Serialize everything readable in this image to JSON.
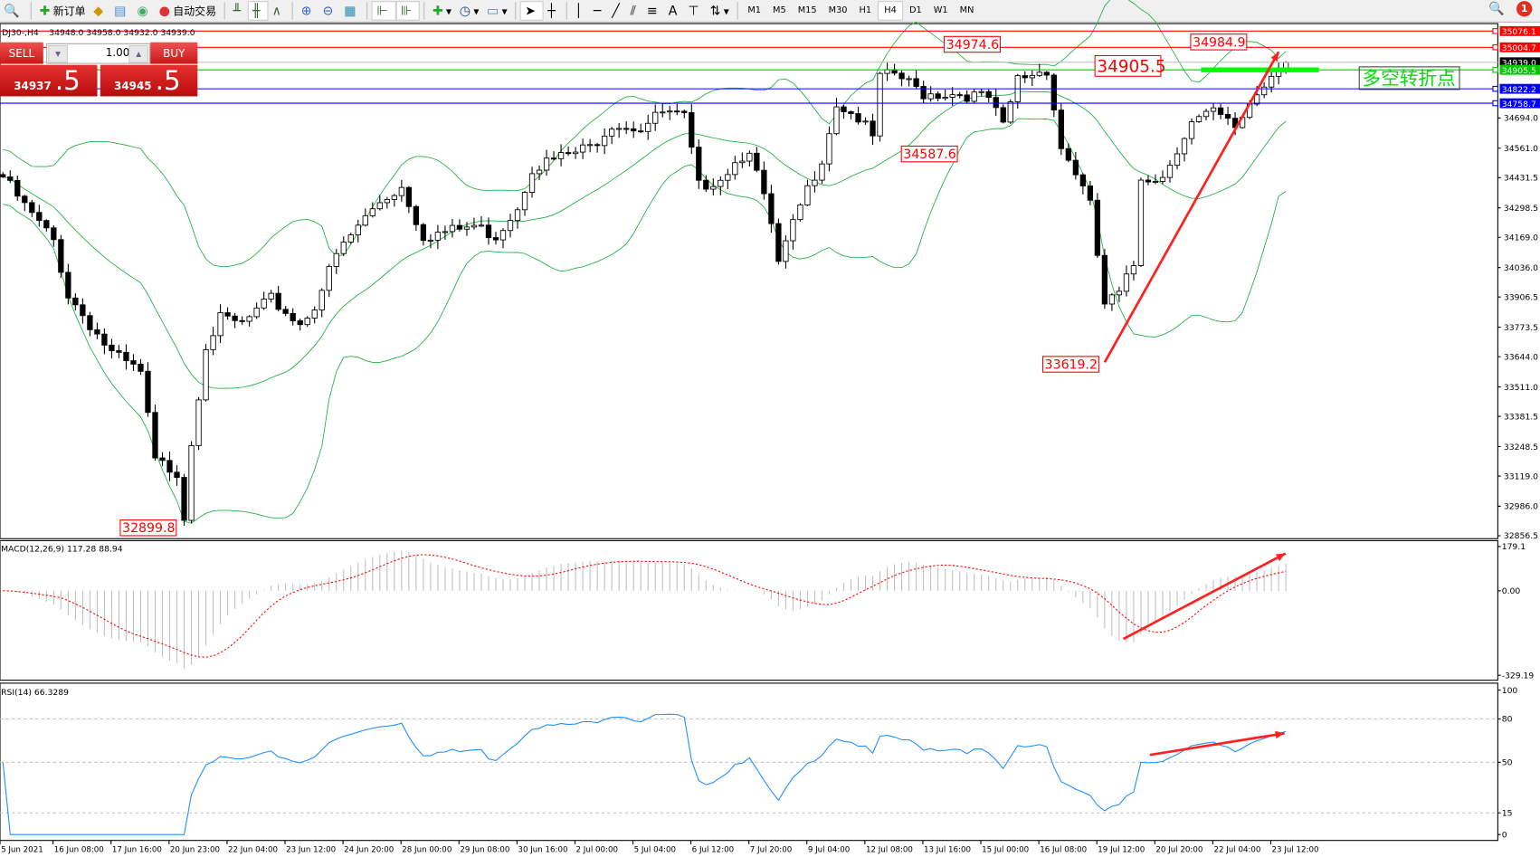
{
  "toolbar": {
    "new_order": "新订单",
    "auto_trading": "自动交易",
    "timeframes": [
      "M1",
      "M5",
      "M15",
      "M30",
      "H1",
      "H4",
      "D1",
      "W1",
      "MN"
    ],
    "active_timeframe": "H4",
    "notification_count": "1"
  },
  "chart_header": {
    "symbol": "DJ30-,H4",
    "ohlc": "34948.0 34958.0 34932.0 34939.0"
  },
  "one_click": {
    "sell_label": "SELL",
    "buy_label": "BUY",
    "lot": "1.00",
    "sell_main": "34937",
    "sell_frac": ".5",
    "buy_main": "34945",
    "buy_frac": ".5"
  },
  "annotation": {
    "text": "多空转折点",
    "color": "#00e000"
  },
  "colors": {
    "bull_line": "#ff0000",
    "bear_line": "#0000ff",
    "pivot": "#00cc00",
    "band": "#20b040",
    "rsi": "#1e90ff",
    "macd_signal": "#ff0000",
    "arrow": "#ff2020"
  },
  "chart_data": [
    {
      "type": "candlestick",
      "title": "DJ30-,H4",
      "indicator": "Bollinger Bands",
      "ylim": [
        32856.5,
        35076.1
      ],
      "y_ticks": [
        "34694.0",
        "34561.0",
        "34431.5",
        "34298.5",
        "34169.0",
        "34036.0",
        "33906.5",
        "33773.5",
        "33644.0",
        "33511.0",
        "33381.5",
        "33248.5",
        "33119.0",
        "32986.0",
        "32856.5"
      ],
      "x_ticks": [
        "5 Jun 2021",
        "16 Jun 08:00",
        "17 Jun 16:00",
        "20 Jun 23:00",
        "22 Jun 04:00",
        "23 Jun 12:00",
        "24 Jun 20:00",
        "28 Jun 00:00",
        "29 Jun 08:00",
        "30 Jun 16:00",
        "2 Jul 00:00",
        "5 Jul 04:00",
        "6 Jul 12:00",
        "7 Jul 20:00",
        "9 Jul 04:00",
        "12 Jul 08:00",
        "13 Jul 16:00",
        "15 Jul 00:00",
        "16 Jul 08:00",
        "19 Jul 12:00",
        "20 Jul 20:00",
        "22 Jul 04:00",
        "23 Jul 12:00"
      ],
      "close_keypoints": [
        [
          0,
          34435
        ],
        [
          3,
          34305
        ],
        [
          7,
          34154
        ],
        [
          9,
          33916
        ],
        [
          12,
          33787
        ],
        [
          15,
          33657
        ],
        [
          19,
          33570
        ],
        [
          21,
          33182
        ],
        [
          24,
          33139
        ],
        [
          25,
          32944
        ],
        [
          26,
          33268
        ],
        [
          28,
          33700
        ],
        [
          30,
          33808
        ],
        [
          33,
          33787
        ],
        [
          37,
          33895
        ],
        [
          41,
          33787
        ],
        [
          43,
          33873
        ],
        [
          46,
          34089
        ],
        [
          49,
          34219
        ],
        [
          52,
          34327
        ],
        [
          55,
          34392
        ],
        [
          58,
          34176
        ],
        [
          62,
          34197
        ],
        [
          65,
          34219
        ],
        [
          68,
          34176
        ],
        [
          71,
          34305
        ],
        [
          73,
          34478
        ],
        [
          77,
          34521
        ],
        [
          81,
          34564
        ],
        [
          84,
          34672
        ],
        [
          88,
          34651
        ],
        [
          91,
          34716
        ],
        [
          94,
          34694
        ],
        [
          96,
          34392
        ],
        [
          99,
          34435
        ],
        [
          103,
          34564
        ],
        [
          106,
          34219
        ],
        [
          107,
          34046
        ],
        [
          110,
          34305
        ],
        [
          113,
          34521
        ],
        [
          115,
          34759
        ],
        [
          118,
          34694
        ],
        [
          120,
          34607
        ],
        [
          121,
          34867
        ],
        [
          123,
          34888
        ],
        [
          127,
          34802
        ],
        [
          132,
          34802
        ],
        [
          136,
          34780
        ],
        [
          138,
          34651
        ],
        [
          140,
          34867
        ],
        [
          142,
          34888
        ],
        [
          144,
          34910
        ],
        [
          146,
          34564
        ],
        [
          148,
          34456
        ],
        [
          150,
          34305
        ],
        [
          151,
          34089
        ],
        [
          152,
          33873
        ],
        [
          154,
          33916
        ],
        [
          156,
          34046
        ],
        [
          157,
          34435
        ],
        [
          160,
          34435
        ],
        [
          162,
          34564
        ],
        [
          164,
          34672
        ],
        [
          167,
          34716
        ],
        [
          170,
          34651
        ],
        [
          172,
          34759
        ],
        [
          175,
          34888
        ],
        [
          176,
          34932
        ],
        [
          177,
          34939
        ]
      ],
      "horizontal_lines": [
        {
          "price": "35076.1",
          "color": "#ff0000"
        },
        {
          "price": "35004.7",
          "color": "#ff0000"
        },
        {
          "price": "34939.0",
          "color": "#c0c0c0",
          "current": true
        },
        {
          "price": "34905.5",
          "color": "#00cc00"
        },
        {
          "price": "34822.2",
          "color": "#0000ff"
        },
        {
          "price": "34758.7",
          "color": "#0000ff"
        }
      ],
      "price_labels": [
        {
          "text": "34974.6",
          "bar": 138
        },
        {
          "text": "34587.6",
          "bar": 131
        },
        {
          "text": "33619.2",
          "bar": 152
        },
        {
          "text": "32899.8",
          "bar": 25
        },
        {
          "text": "34984.9",
          "bar": 172
        },
        {
          "text": "34905.5",
          "bar": 155,
          "large": true
        }
      ],
      "trend_arrow": {
        "from": [
          152,
          33619.2
        ],
        "to": [
          176,
          34984.9
        ]
      }
    },
    {
      "type": "bar+line",
      "title": "MACD(12,26,9) 117.28 88.94",
      "y_ticks": [
        "179.1",
        "0.00",
        "-329.19"
      ],
      "ylim": [
        -329.19,
        179.1
      ],
      "trend_arrow": true
    },
    {
      "type": "line",
      "title": "RSI(14) 66.3289",
      "y_ticks": [
        "100",
        "80",
        "50",
        "15",
        "0"
      ],
      "ylim": [
        0,
        100
      ],
      "levels": [
        80,
        50,
        15
      ],
      "trend_arrow": true
    }
  ]
}
